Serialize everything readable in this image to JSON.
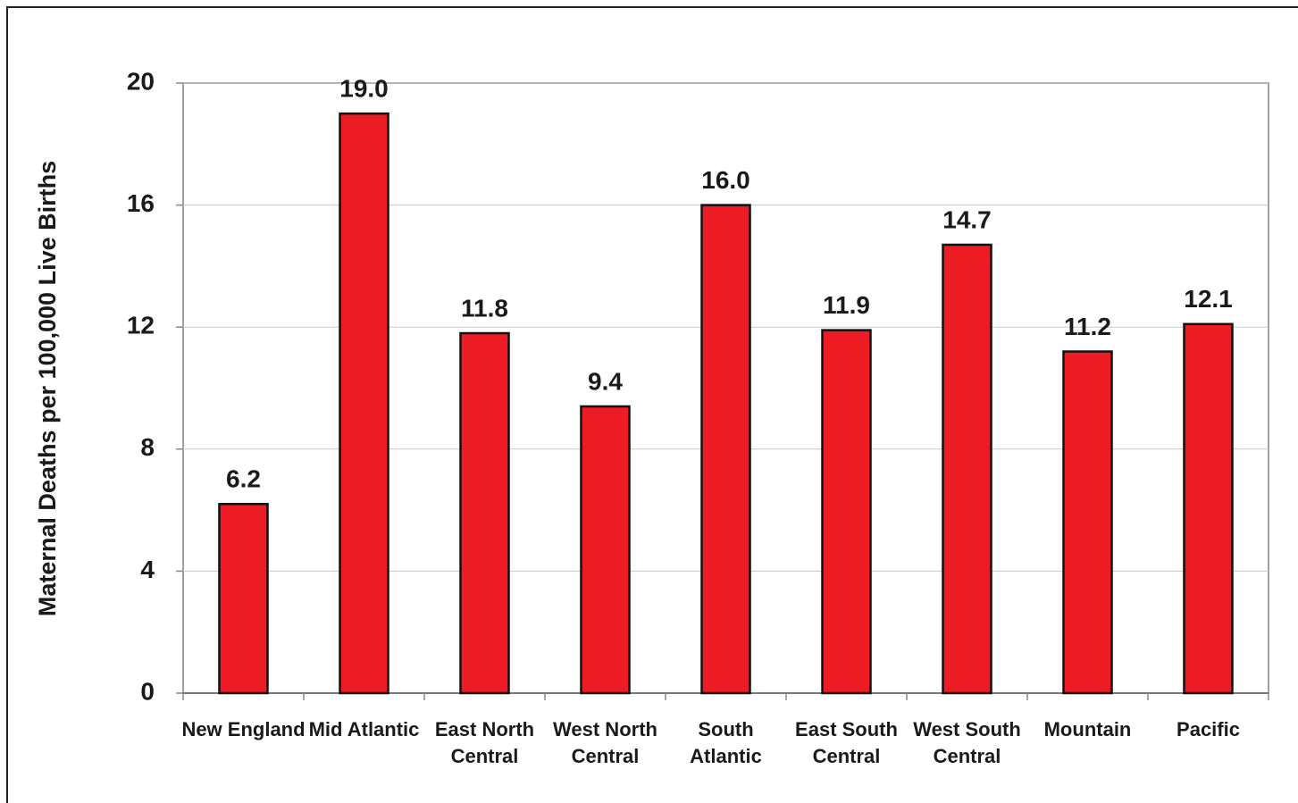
{
  "chart_data": {
    "type": "bar",
    "y_axis_label": "Maternal Deaths per 100,000 Live Births",
    "categories": [
      "New England",
      "Mid Atlantic",
      "East North\nCentral",
      "West North\nCentral",
      "South\nAtlantic",
      "East South\nCentral",
      "West South\nCentral",
      "Mountain",
      "Pacific"
    ],
    "values": [
      6.2,
      19,
      11.8,
      9.4,
      16,
      11.9,
      14.7,
      11.2,
      12.1
    ],
    "value_labels": [
      "6.2",
      "19.0",
      "11.8",
      "9.4",
      "16.0",
      "11.9",
      "14.7",
      "11.2",
      "12.1"
    ],
    "color": "#ed1c24",
    "ylim": [
      0,
      20
    ],
    "yticks": [
      0,
      4,
      8,
      12,
      16,
      20
    ],
    "grid": true
  }
}
